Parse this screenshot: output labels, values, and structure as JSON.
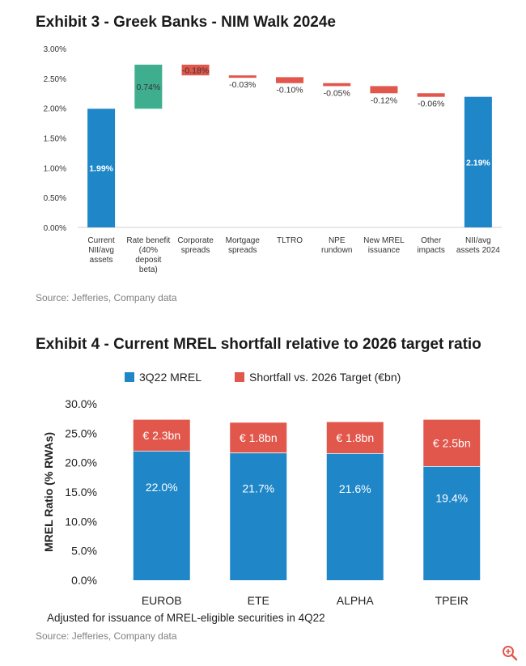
{
  "exhibit3": {
    "title": "Exhibit 3 - Greek Banks - NIM Walk 2024e",
    "source": "Source: Jefferies, Company data",
    "chart_data": {
      "type": "bar",
      "subtype": "waterfall",
      "title": "Exhibit 3 - Greek Banks - NIM Walk 2024e",
      "y_ticks": [
        "0.00%",
        "0.50%",
        "1.00%",
        "1.50%",
        "2.00%",
        "2.50%",
        "3.00%"
      ],
      "ylim": [
        0,
        3.0
      ],
      "categories": [
        [
          "Current",
          "NII/avg",
          "assets"
        ],
        [
          "Rate benefit",
          "(40%",
          "deposit",
          "beta)"
        ],
        [
          "Corporate",
          "spreads"
        ],
        [
          "Mortgage",
          "spreads"
        ],
        [
          "TLTRO"
        ],
        [
          "NPE",
          "rundown"
        ],
        [
          "New MREL",
          "issuance"
        ],
        [
          "Other",
          "impacts"
        ],
        [
          "NII/avg",
          "assets 2024"
        ]
      ],
      "values": [
        1.99,
        0.74,
        -0.18,
        -0.03,
        -0.1,
        -0.05,
        -0.12,
        -0.06,
        2.19
      ],
      "labels": [
        "1.99%",
        "0.74%",
        "-0.18%",
        "-0.03%",
        "-0.10%",
        "-0.05%",
        "-0.12%",
        "-0.06%",
        "2.19%"
      ],
      "kinds": [
        "total",
        "increase",
        "decrease",
        "decrease",
        "decrease",
        "decrease",
        "decrease",
        "decrease",
        "total"
      ],
      "colors": {
        "total": "#1f86c8",
        "increase": "#3fae8e",
        "decrease": "#e2574c"
      }
    }
  },
  "exhibit4": {
    "title": "Exhibit 4 - Current MREL shortfall relative to 2026 target ratio",
    "note": "Adjusted for issuance of MREL-eligible securities in 4Q22",
    "source": "Source: Jefferies, Company data",
    "chart_data": {
      "type": "bar",
      "subtype": "stacked",
      "categories": [
        "EUROB",
        "ETE",
        "ALPHA",
        "TPEIR"
      ],
      "ylabel": "MREL Ratio (% RWAs)",
      "ylim": [
        0,
        30
      ],
      "y_ticks": [
        "0.0%",
        "5.0%",
        "10.0%",
        "15.0%",
        "20.0%",
        "25.0%",
        "30.0%"
      ],
      "legend_position": "top",
      "series": [
        {
          "name": "3Q22 MREL",
          "color": "#1f86c8",
          "values": [
            22.0,
            21.7,
            21.6,
            19.4
          ],
          "labels": [
            "22.0%",
            "21.7%",
            "21.6%",
            "19.4%"
          ]
        },
        {
          "name": "Shortfall vs. 2026 Target (€bn)",
          "color": "#e2574c",
          "values": [
            5.3,
            5.1,
            5.3,
            7.9
          ],
          "labels": [
            "€ 2.3bn",
            "€ 1.8bn",
            "€ 1.8bn",
            "€ 2.5bn"
          ]
        }
      ]
    }
  }
}
